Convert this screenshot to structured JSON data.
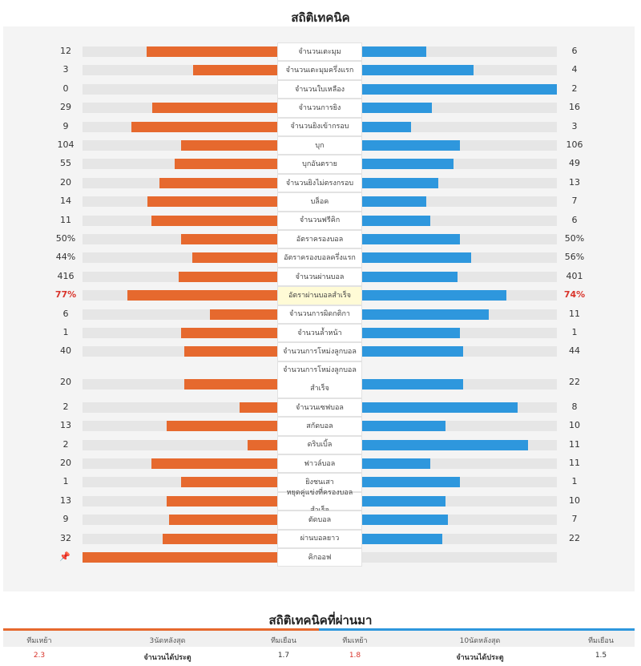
{
  "title": "สถิติเทคนิค",
  "colors": {
    "home": "#e6692e",
    "away": "#2e97dd",
    "highlight": "#d9342b"
  },
  "stats": [
    {
      "label": "จำนวนเตะมุม",
      "home": "12",
      "away": "6",
      "hf": 0.675,
      "af": 0.33
    },
    {
      "label": "จำนวนเตะมุมครึ่งแรก",
      "home": "3",
      "away": "4",
      "hf": 0.435,
      "af": 0.57
    },
    {
      "label": "จำนวนใบเหลือง",
      "home": "0",
      "away": "2",
      "hf": 0,
      "af": 1.0
    },
    {
      "label": "จำนวนการยิง",
      "home": "29",
      "away": "16",
      "hf": 0.645,
      "af": 0.36
    },
    {
      "label": "จำนวนยิงเข้ากรอบ",
      "home": "9",
      "away": "3",
      "hf": 0.75,
      "af": 0.25
    },
    {
      "label": "บุก",
      "home": "104",
      "away": "106",
      "hf": 0.5,
      "af": 0.5
    },
    {
      "label": "บุกอันตราย",
      "home": "55",
      "away": "49",
      "hf": 0.53,
      "af": 0.47
    },
    {
      "label": "จำนวนยิงไม่ตรงกรอบ",
      "home": "20",
      "away": "13",
      "hf": 0.61,
      "af": 0.39
    },
    {
      "label": "บล็อค",
      "home": "14",
      "away": "7",
      "hf": 0.67,
      "af": 0.33
    },
    {
      "label": "จำนวนฟรีคิก",
      "home": "11",
      "away": "6",
      "hf": 0.65,
      "af": 0.35
    },
    {
      "label": "อัตราครองบอล",
      "home": "50%",
      "away": "50%",
      "hf": 0.5,
      "af": 0.5
    },
    {
      "label": "อัตราครองบอลครึ่งแรก",
      "home": "44%",
      "away": "56%",
      "hf": 0.44,
      "af": 0.56
    },
    {
      "label": "จำนวนผ่านบอล",
      "home": "416",
      "away": "401",
      "hf": 0.51,
      "af": 0.49
    },
    {
      "label": "อัตราผ่านบอลสำเร็จ",
      "home": "77%",
      "away": "74%",
      "hf": 0.77,
      "af": 0.74,
      "highlight": true
    },
    {
      "label": "จำนวนการผิดกติกา",
      "home": "6",
      "away": "11",
      "hf": 0.35,
      "af": 0.65
    },
    {
      "label": "จำนวนล้ำหน้า",
      "home": "1",
      "away": "1",
      "hf": 0.5,
      "af": 0.5
    },
    {
      "label": "จำนวนการโหม่งลูกบอล",
      "home": "40",
      "away": "44",
      "hf": 0.48,
      "af": 0.52
    },
    {
      "label": "จำนวนการโหม่งลูกบอลสำเร็จ",
      "home": "20",
      "away": "22",
      "hf": 0.48,
      "af": 0.52,
      "tall": true
    },
    {
      "label": "จำนวนเซฟบอล",
      "home": "2",
      "away": "8",
      "hf": 0.2,
      "af": 0.8
    },
    {
      "label": "สกัดบอล",
      "home": "13",
      "away": "10",
      "hf": 0.57,
      "af": 0.43
    },
    {
      "label": "ดริบเบิ้ล",
      "home": "2",
      "away": "11",
      "hf": 0.16,
      "af": 0.85
    },
    {
      "label": "ฟาวล์บอล",
      "home": "20",
      "away": "11",
      "hf": 0.65,
      "af": 0.35
    },
    {
      "label": "ยิงชนเสา",
      "home": "1",
      "away": "1",
      "hf": 0.5,
      "af": 0.5
    },
    {
      "label": "หยุดคู่แข่งที่ครองบอลสำเร็จ",
      "home": "13",
      "away": "10",
      "hf": 0.57,
      "af": 0.43
    },
    {
      "label": "ตัดบอล",
      "home": "9",
      "away": "7",
      "hf": 0.56,
      "af": 0.44
    },
    {
      "label": "ผ่านบอลยาว",
      "home": "32",
      "away": "22",
      "hf": 0.59,
      "af": 0.41
    },
    {
      "label": "คิกออฟ",
      "home": "",
      "away": "",
      "hf": 1.0,
      "af": 0,
      "pin": true
    }
  ],
  "history": {
    "title": "สถิติเทคนิคที่ผ่านมา",
    "left": {
      "col1": "ทีมเหย้า",
      "col2": "3นัดหลังสุด",
      "col3": "ทีมเยือน",
      "home": "2.3",
      "label": "จำนวนได้ประตู",
      "away": "1.7"
    },
    "right": {
      "col1": "ทีมเหย้า",
      "col2": "10นัดหลังสุด",
      "col3": "ทีมเยือน",
      "home": "1.8",
      "label": "จำนวนได้ประตู",
      "away": "1.5"
    }
  }
}
